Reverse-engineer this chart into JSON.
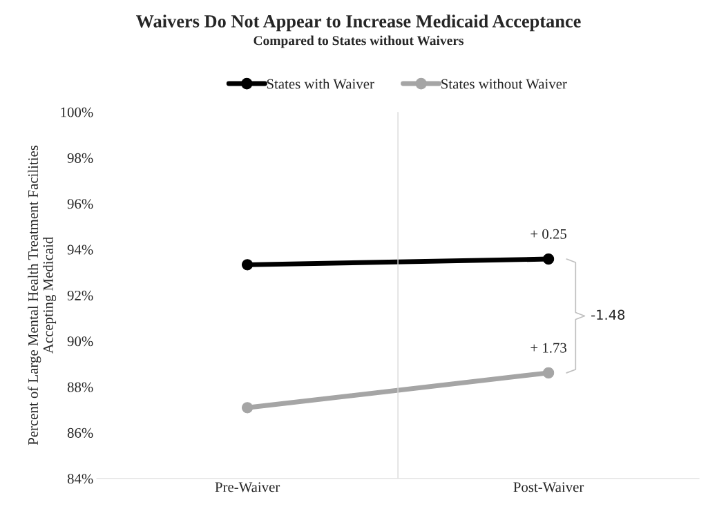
{
  "chart_data": {
    "type": "line",
    "title": "Waivers Do Not Appear to Increase Medicaid Acceptance",
    "subtitle": "Compared to States without Waivers",
    "ylabel": "Percent of Large Mental Health Treatment Facilities\nAccepting Medicaid",
    "categories": [
      "Pre-Waiver",
      "Post-Waiver"
    ],
    "series": [
      {
        "name": "States with Waiver",
        "color": "#000000",
        "values": [
          93.33,
          93.58
        ]
      },
      {
        "name": "States without Waiver",
        "color": "#a5a5a5",
        "values": [
          87.09,
          88.61
        ]
      }
    ],
    "ylim": [
      84,
      100
    ],
    "yticks": [
      {
        "value": 84,
        "label": "84%"
      },
      {
        "value": 86,
        "label": "86%"
      },
      {
        "value": 88,
        "label": "88%"
      },
      {
        "value": 90,
        "label": "90%"
      },
      {
        "value": 92,
        "label": "92%"
      },
      {
        "value": 94,
        "label": "94%"
      },
      {
        "value": 96,
        "label": "96%"
      },
      {
        "value": 98,
        "label": "98%"
      },
      {
        "value": 100,
        "label": "100%"
      }
    ],
    "annotations": [
      {
        "text": "+ 0.25",
        "x": "Post-Waiver",
        "y": 93.58
      },
      {
        "text": "+ 1.73",
        "x": "Post-Waiver",
        "y": 88.61
      },
      "-1.48"
    ],
    "grid": "x",
    "legend": "top",
    "marker": "circle",
    "line_style": "solid"
  }
}
